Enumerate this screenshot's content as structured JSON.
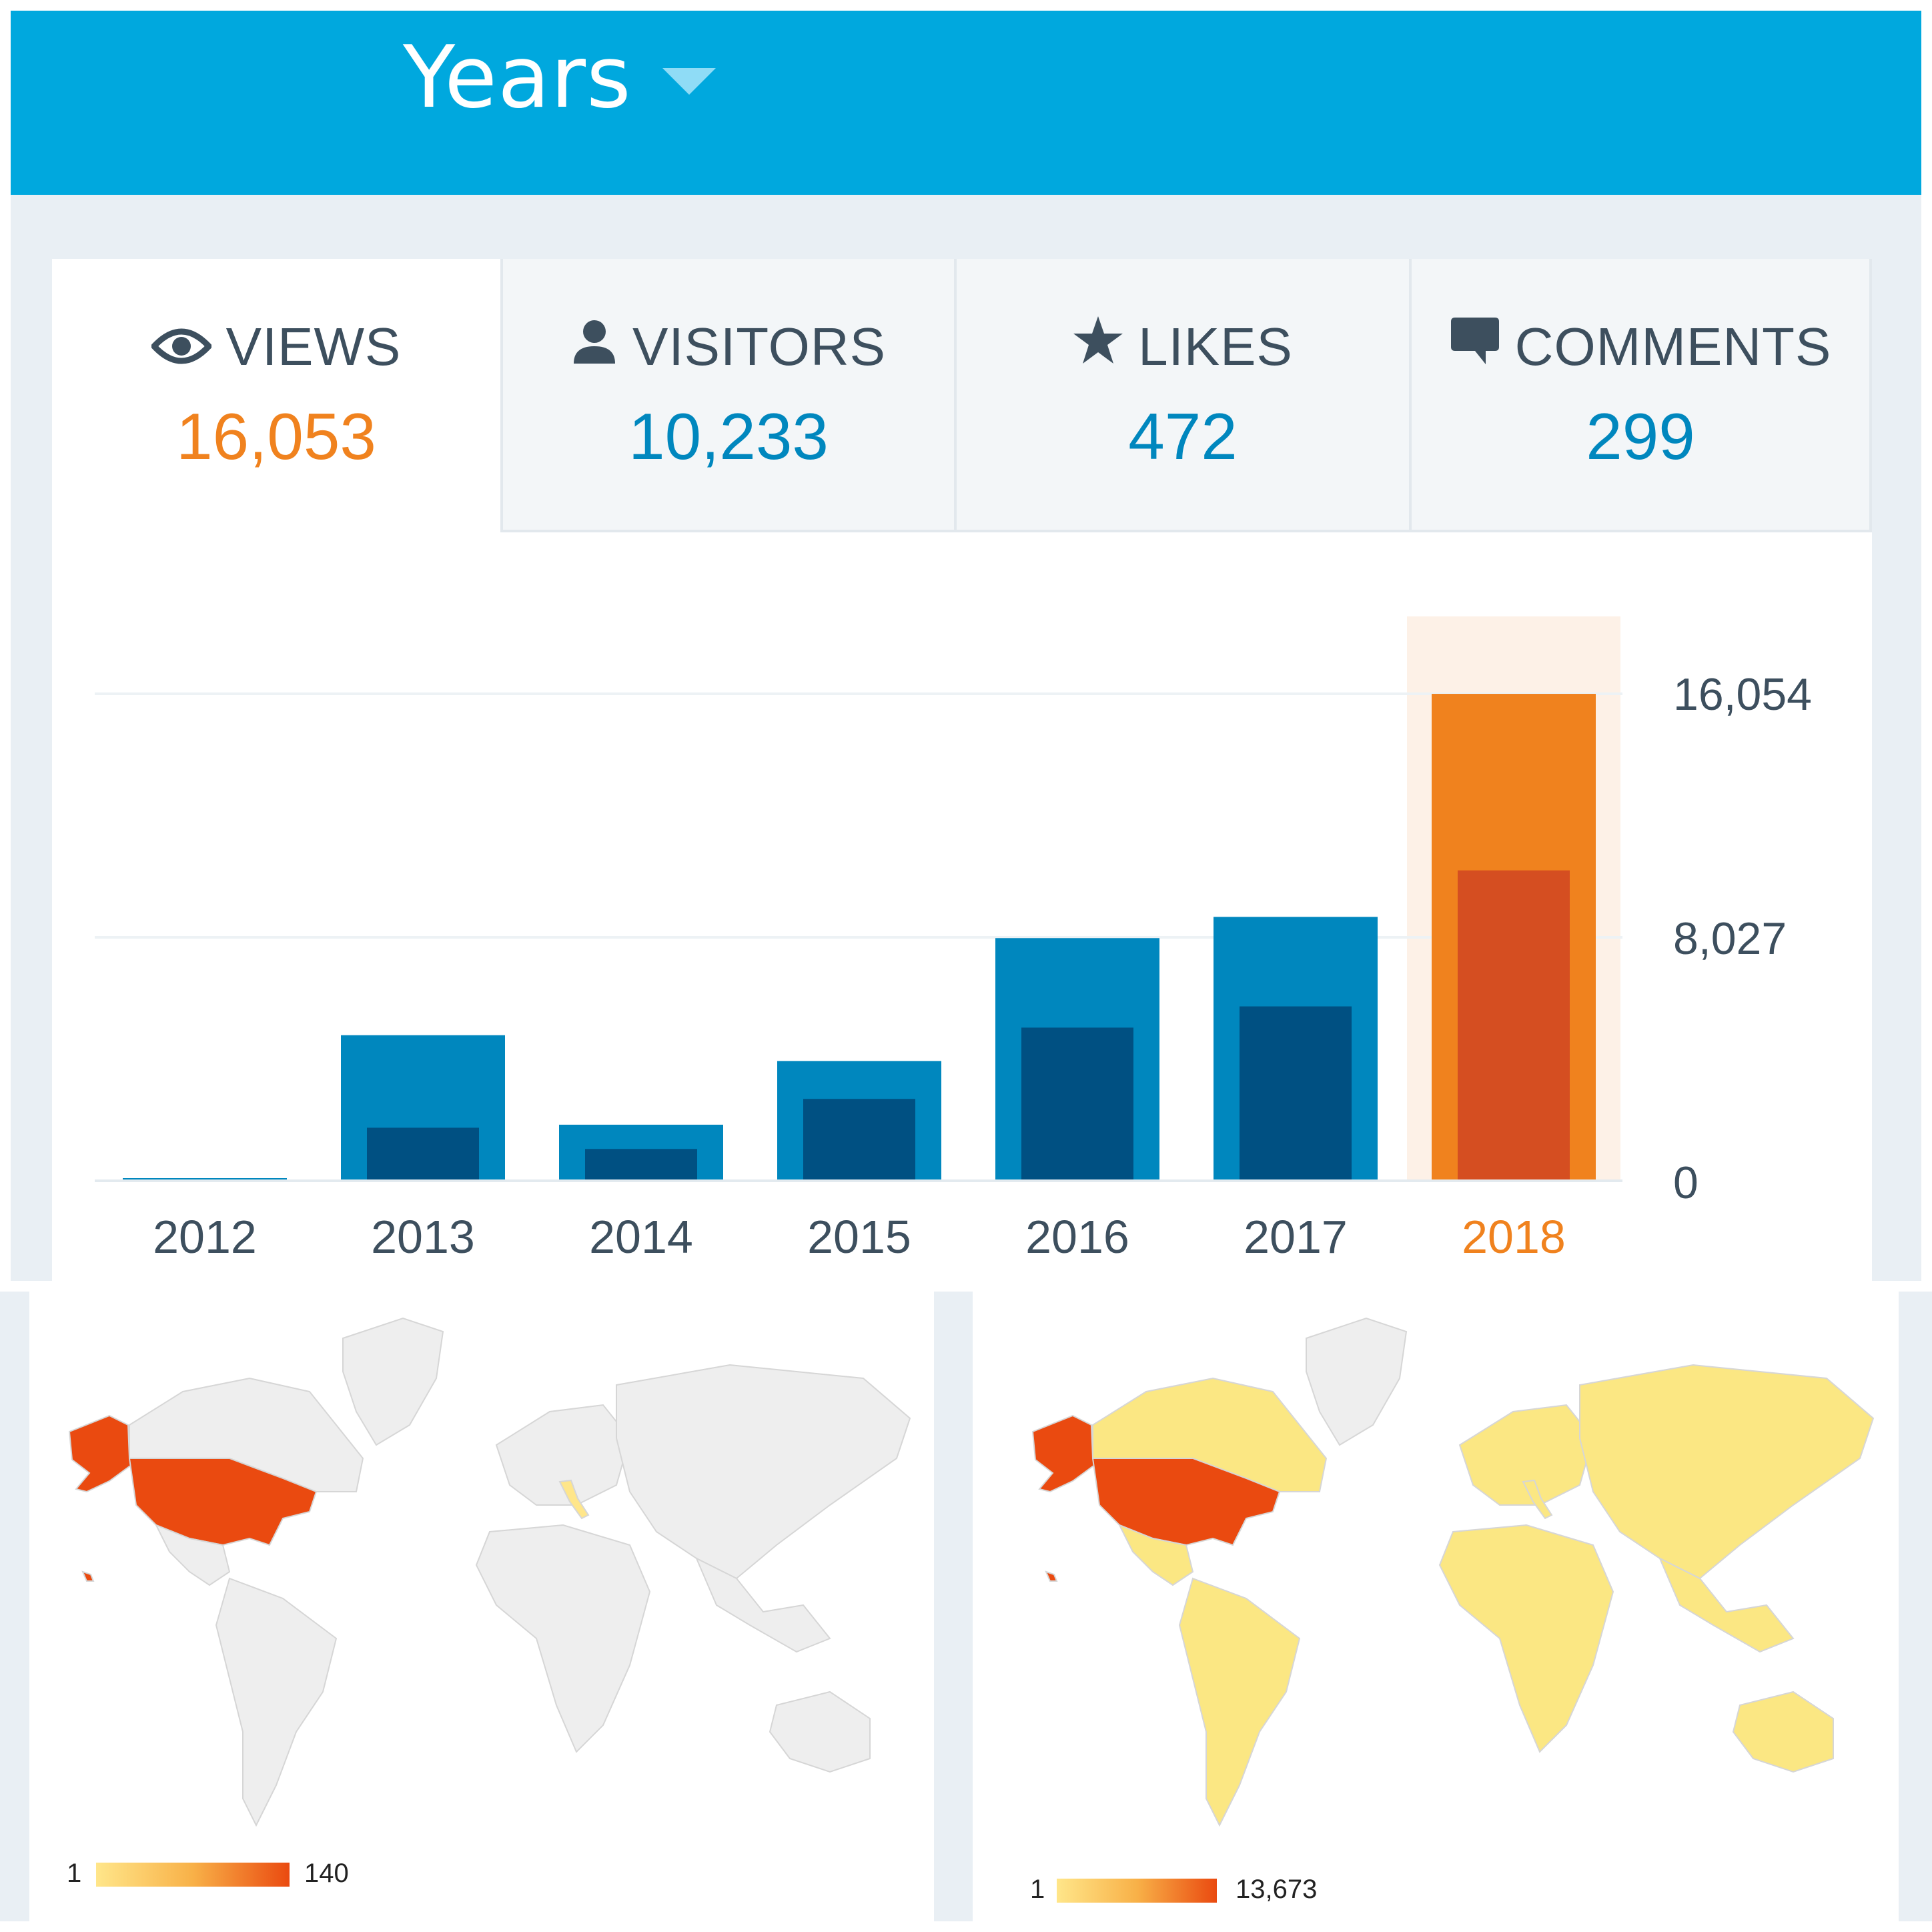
{
  "header": {
    "period_label": "Years"
  },
  "tabs": [
    {
      "label": "VIEWS",
      "value": "16,053",
      "icon": "eye-icon"
    },
    {
      "label": "VISITORS",
      "value": "10,233",
      "icon": "person-icon"
    },
    {
      "label": "LIKES",
      "value": "472",
      "icon": "star-icon"
    },
    {
      "label": "COMMENTS",
      "value": "299",
      "icon": "comment-icon"
    }
  ],
  "colors": {
    "header": "#00a8de",
    "views_bar": "#0087be",
    "visitors_bar": "#005082",
    "selected_views_bar": "#f0821e",
    "selected_visitors_bar": "#d54e21",
    "selected_highlight": "#fdf1e7",
    "map_max": "#ea4a10",
    "map_min": "#ffe68a",
    "map_none": "#eeeeee"
  },
  "chart_data": {
    "type": "bar",
    "categories": [
      "2012",
      "2013",
      "2014",
      "2015",
      "2016",
      "2017",
      "2018"
    ],
    "series": [
      {
        "name": "VIEWS",
        "values": [
          60,
          4800,
          1850,
          3950,
          8000,
          8700,
          16053
        ]
      },
      {
        "name": "VISITORS",
        "values": [
          30,
          1750,
          1050,
          2700,
          5050,
          5750,
          10233
        ]
      }
    ],
    "y_ticks": [
      "0",
      "8,027",
      "16,054"
    ],
    "ylim": [
      0,
      16054
    ],
    "selected_category": "2018",
    "grid": true
  },
  "maps": [
    {
      "legend_min": "1",
      "legend_max": "140",
      "highlighted": [
        {
          "region": "United States",
          "level": "max"
        },
        {
          "region": "Italy",
          "level": "low"
        }
      ]
    },
    {
      "legend_min": "1",
      "legend_max": "13,673",
      "highlighted": [
        {
          "region": "United States",
          "level": "max"
        },
        {
          "region": "Most other countries",
          "level": "low"
        }
      ]
    }
  ]
}
